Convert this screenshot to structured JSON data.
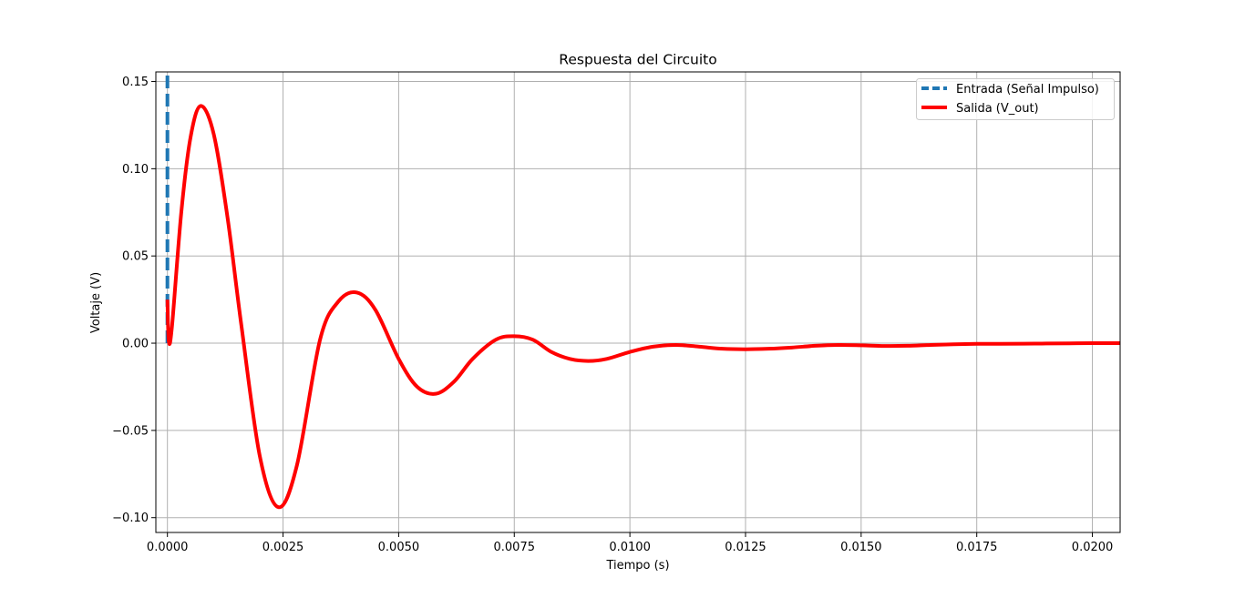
{
  "chart_data": {
    "type": "line",
    "title": "Respuesta del Circuito",
    "xlabel": "Tiempo (s)",
    "ylabel": "Voltaje (V)",
    "xlim": [
      -0.00025,
      0.0206
    ],
    "ylim": [
      -0.1085,
      0.1555
    ],
    "x_ticks": [
      0,
      0.0025,
      0.005,
      0.0075,
      0.01,
      0.0125,
      0.015,
      0.0175,
      0.02
    ],
    "x_tick_labels": [
      "0.0000",
      "0.0025",
      "0.0050",
      "0.0075",
      "0.0100",
      "0.0125",
      "0.0150",
      "0.0175",
      "0.0200"
    ],
    "y_ticks": [
      -0.1,
      -0.05,
      0,
      0.05,
      0.1,
      0.15
    ],
    "y_tick_labels": [
      "−0.10",
      "−0.05",
      "0.00",
      "0.05",
      "0.10",
      "0.15"
    ],
    "grid": true,
    "legend_position": "top-right",
    "series": [
      {
        "name": "Entrada (Señal Impulso)",
        "color": "#1f77b4",
        "style": "dashed",
        "x": [
          0,
          0
        ],
        "y": [
          0,
          0.1555
        ]
      },
      {
        "name": "Salida (V_out)",
        "color": "#ff0000",
        "style": "solid",
        "x": [
          0,
          3e-05,
          0.0001,
          0.0003,
          0.0005,
          0.00072,
          0.001,
          0.0013,
          0.0016,
          0.002,
          0.0024,
          0.0028,
          0.0033,
          0.0037,
          0.0041,
          0.0045,
          0.005,
          0.0054,
          0.0058,
          0.0062,
          0.0066,
          0.0071,
          0.0075,
          0.0079,
          0.0083,
          0.0087,
          0.0091,
          0.0095,
          0.01,
          0.0105,
          0.011,
          0.0115,
          0.012,
          0.0125,
          0.013,
          0.0135,
          0.014,
          0.0145,
          0.015,
          0.0155,
          0.016,
          0.0165,
          0.017,
          0.0175,
          0.018,
          0.0185,
          0.019,
          0.0195,
          0.02,
          0.0206
        ],
        "y": [
          0.025,
          0.001,
          0.01,
          0.075,
          0.118,
          0.136,
          0.12,
          0.072,
          0.01,
          -0.065,
          -0.094,
          -0.07,
          0.002,
          0.024,
          0.029,
          0.019,
          -0.009,
          -0.025,
          -0.029,
          -0.022,
          -0.009,
          0.002,
          0.004,
          0.002,
          -0.005,
          -0.009,
          -0.0102,
          -0.009,
          -0.005,
          -0.002,
          -0.001,
          -0.002,
          -0.0032,
          -0.0035,
          -0.0032,
          -0.0025,
          -0.0015,
          -0.001,
          -0.0012,
          -0.0016,
          -0.0015,
          -0.001,
          -0.0006,
          -0.0004,
          -0.0004,
          -0.0003,
          -0.0002,
          -0.0001,
          0,
          0
        ]
      }
    ]
  }
}
